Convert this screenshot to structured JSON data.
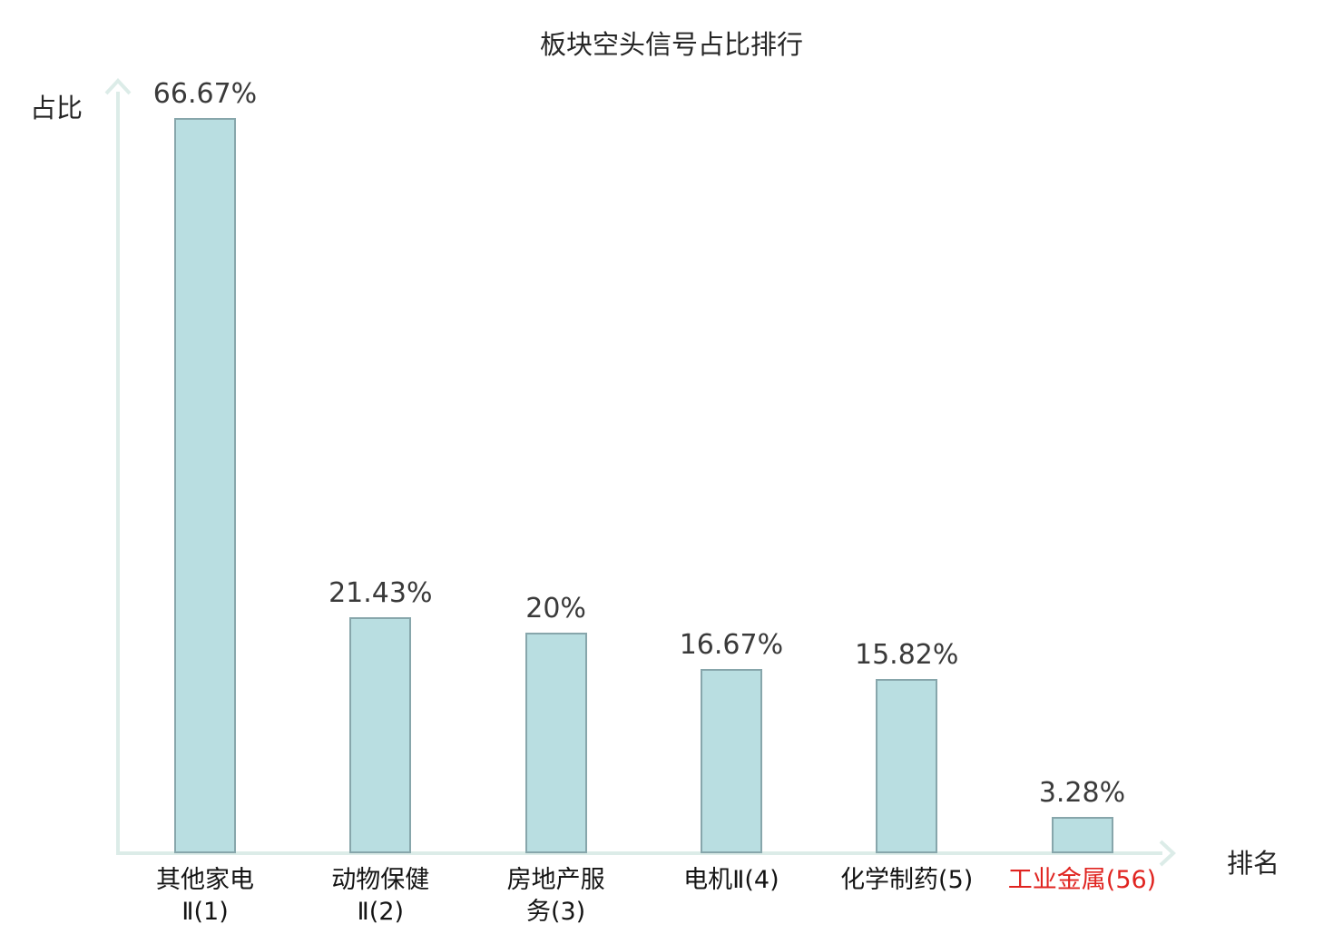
{
  "chart_data": {
    "type": "bar",
    "title": "板块空头信号占比排行",
    "xlabel": "排名",
    "ylabel": "占比",
    "categories": [
      "其他家电Ⅱ(1)",
      "动物保健Ⅱ(2)",
      "房地产服务(3)",
      "电机Ⅱ(4)",
      "化学制药(5)",
      "工业金属(56)"
    ],
    "category_lines": [
      [
        "其他家电",
        "Ⅱ(1)"
      ],
      [
        "动物保健",
        "Ⅱ(2)"
      ],
      [
        "房地产服",
        "务(3)"
      ],
      [
        "电机Ⅱ(4)"
      ],
      [
        "化学制药(5)"
      ],
      [
        "工业金属(56)"
      ]
    ],
    "values": [
      66.67,
      21.43,
      20,
      16.67,
      15.82,
      3.28
    ],
    "value_labels": [
      "66.67%",
      "21.43%",
      "20%",
      "16.67%",
      "15.82%",
      "3.28%"
    ],
    "highlight_index": 5,
    "ylim": [
      0,
      70
    ],
    "grid": false,
    "legend": false
  },
  "colors": {
    "bar_fill": "#b9dee1",
    "bar_border": "#87a6ab",
    "axis": "#dcece8",
    "text": "#262626",
    "value_text": "#3a3a3a",
    "highlight": "#e02420"
  }
}
